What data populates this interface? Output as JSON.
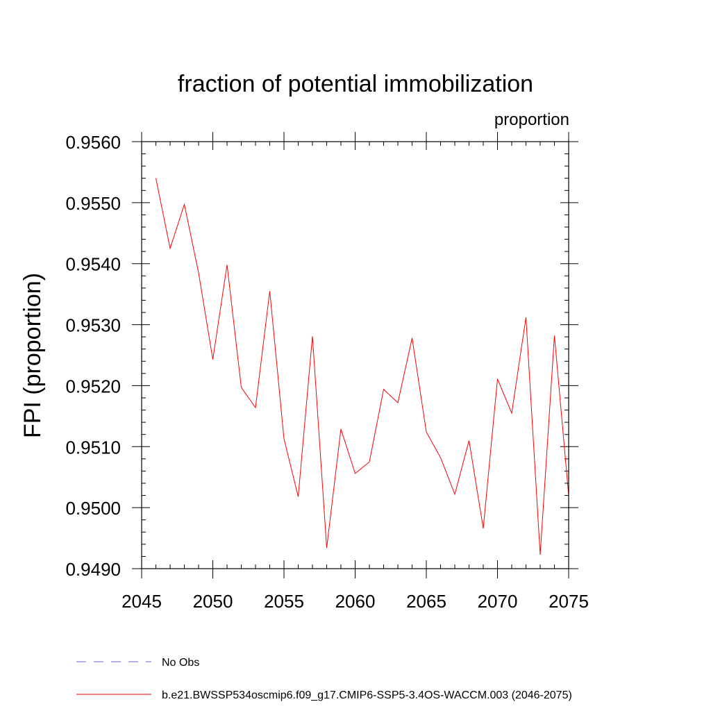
{
  "chart_data": {
    "type": "line",
    "title": "fraction of potential immobilization",
    "units_label": "proportion",
    "xlabel": "",
    "ylabel": "FPI  (proportion)",
    "xlim": [
      2045,
      2075
    ],
    "ylim": [
      0.949,
      0.956
    ],
    "x_ticks": [
      2045,
      2050,
      2055,
      2060,
      2065,
      2070,
      2075
    ],
    "y_ticks": [
      "0.9490",
      "0.9500",
      "0.9510",
      "0.9520",
      "0.9530",
      "0.9540",
      "0.9550",
      "0.9560"
    ],
    "x": [
      2046,
      2047,
      2048,
      2049,
      2050,
      2051,
      2052,
      2053,
      2054,
      2055,
      2056,
      2057,
      2058,
      2059,
      2060,
      2061,
      2062,
      2063,
      2064,
      2065,
      2066,
      2067,
      2068,
      2069,
      2070,
      2071,
      2072,
      2073,
      2074,
      2075
    ],
    "series": [
      {
        "name": "b.e21.BWSSP534oscmip6.f09_g17.CMIP6-SSP5-3.4OS-WACCM.003 (2046-2075)",
        "color": "#ff0000",
        "style": "solid",
        "values": [
          0.9554,
          0.95425,
          0.95497,
          0.95385,
          0.95243,
          0.95398,
          0.95197,
          0.95164,
          0.95355,
          0.95113,
          0.95018,
          0.95281,
          0.94934,
          0.95129,
          0.95056,
          0.95075,
          0.95194,
          0.95172,
          0.95278,
          0.95124,
          0.95082,
          0.95022,
          0.9511,
          0.94966,
          0.95211,
          0.95155,
          0.95312,
          0.94923,
          0.95282,
          0.9502
        ]
      }
    ],
    "legend": [
      {
        "label": "No Obs",
        "color": "#6666cc",
        "style": "dashed"
      },
      {
        "label": "b.e21.BWSSP534oscmip6.f09_g17.CMIP6-SSP5-3.4OS-WACCM.003 (2046-2075)",
        "color": "#ff0000",
        "style": "solid"
      }
    ],
    "legend_position": "bottom-left"
  }
}
